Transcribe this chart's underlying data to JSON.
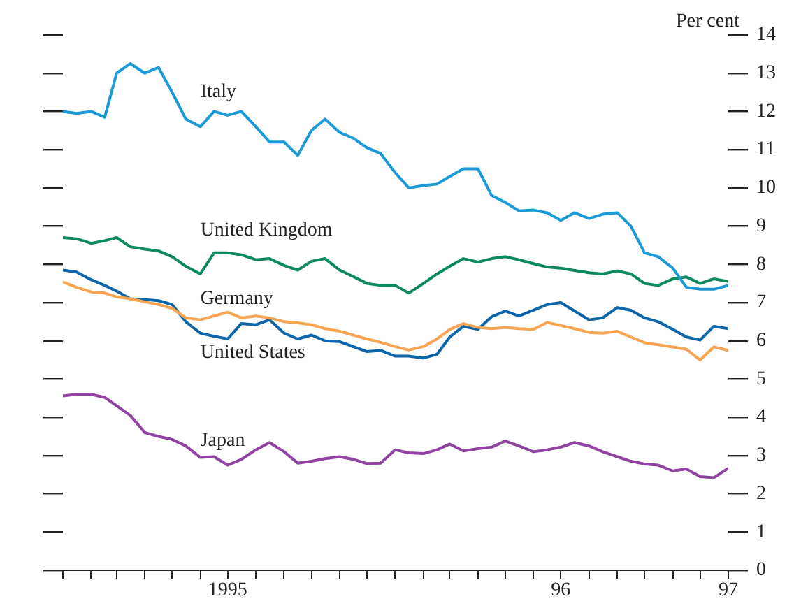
{
  "chart_data": {
    "type": "line",
    "ylabel": "Per cent",
    "x": [
      "1995-01-01",
      "1995-01-16",
      "1995-02-01",
      "1995-02-16",
      "1995-03-01",
      "1995-03-16",
      "1995-04-01",
      "1995-04-16",
      "1995-05-01",
      "1995-05-16",
      "1995-06-01",
      "1995-06-16",
      "1995-07-01",
      "1995-07-16",
      "1995-08-01",
      "1995-08-16",
      "1995-09-01",
      "1995-09-16",
      "1995-10-01",
      "1995-10-16",
      "1995-11-01",
      "1995-11-16",
      "1995-12-01",
      "1995-12-16",
      "1996-01-01",
      "1996-01-16",
      "1996-02-01",
      "1996-02-16",
      "1996-03-01",
      "1996-03-16",
      "1996-04-01",
      "1996-04-16",
      "1996-05-01",
      "1996-05-16",
      "1996-06-01",
      "1996-06-16",
      "1996-07-01",
      "1996-07-16",
      "1996-08-01",
      "1996-08-16",
      "1996-09-01",
      "1996-09-16",
      "1996-10-01",
      "1996-10-16",
      "1996-11-01",
      "1996-11-16",
      "1996-12-01",
      "1996-12-16",
      "1997-01-01"
    ],
    "series": [
      {
        "name": "Italy",
        "color": "#1a9ad6",
        "values": [
          12.0,
          11.95,
          12.0,
          11.85,
          13.0,
          13.25,
          13.0,
          13.15,
          12.5,
          11.8,
          11.6,
          12.0,
          11.9,
          12.0,
          11.6,
          11.2,
          11.2,
          10.85,
          11.5,
          11.8,
          11.45,
          11.3,
          11.05,
          10.9,
          10.4,
          10.0,
          10.06,
          10.1,
          10.3,
          10.5,
          10.5,
          9.8,
          9.62,
          9.4,
          9.42,
          9.35,
          9.15,
          9.35,
          9.2,
          9.31,
          9.35,
          9.0,
          8.3,
          8.2,
          7.9,
          7.4,
          7.35,
          7.35,
          7.45
        ]
      },
      {
        "name": "United Kingdom",
        "color": "#0b8a5c",
        "values": [
          8.7,
          8.67,
          8.55,
          8.62,
          8.7,
          8.46,
          8.4,
          8.35,
          8.2,
          7.95,
          7.75,
          8.3,
          8.3,
          8.25,
          8.12,
          8.15,
          7.97,
          7.85,
          8.08,
          8.15,
          7.85,
          7.68,
          7.5,
          7.45,
          7.45,
          7.25,
          7.5,
          7.75,
          7.95,
          8.15,
          8.06,
          8.15,
          8.2,
          8.12,
          8.02,
          7.93,
          7.9,
          7.84,
          7.78,
          7.75,
          7.83,
          7.75,
          7.5,
          7.45,
          7.62,
          7.67,
          7.5,
          7.62,
          7.55
        ]
      },
      {
        "name": "Germany",
        "color": "#f7a550",
        "values": [
          7.54,
          7.4,
          7.28,
          7.25,
          7.15,
          7.1,
          7.02,
          6.95,
          6.85,
          6.6,
          6.55,
          6.65,
          6.75,
          6.6,
          6.65,
          6.6,
          6.5,
          6.47,
          6.42,
          6.32,
          6.25,
          6.15,
          6.05,
          5.96,
          5.85,
          5.76,
          5.85,
          6.05,
          6.3,
          6.45,
          6.35,
          6.32,
          6.35,
          6.32,
          6.3,
          6.48,
          6.4,
          6.32,
          6.22,
          6.2,
          6.25,
          6.1,
          5.95,
          5.9,
          5.84,
          5.78,
          5.5,
          5.84,
          5.75
        ]
      },
      {
        "name": "United States",
        "color": "#0a66a8",
        "values": [
          7.85,
          7.8,
          7.6,
          7.45,
          7.3,
          7.1,
          7.08,
          7.05,
          6.95,
          6.5,
          6.2,
          6.12,
          6.05,
          6.45,
          6.42,
          6.55,
          6.2,
          6.05,
          6.15,
          6.0,
          5.98,
          5.85,
          5.72,
          5.75,
          5.6,
          5.6,
          5.55,
          5.65,
          6.1,
          6.38,
          6.3,
          6.63,
          6.78,
          6.65,
          6.8,
          6.95,
          7.0,
          6.78,
          6.55,
          6.6,
          6.87,
          6.8,
          6.6,
          6.5,
          6.3,
          6.1,
          6.02,
          6.38,
          6.32
        ]
      },
      {
        "name": "Japan",
        "color": "#8e44a0",
        "values": [
          4.56,
          4.6,
          4.6,
          4.52,
          4.3,
          4.05,
          3.6,
          3.5,
          3.42,
          3.25,
          2.95,
          2.97,
          2.75,
          2.9,
          3.15,
          3.34,
          3.1,
          2.8,
          2.85,
          2.92,
          2.97,
          2.9,
          2.79,
          2.8,
          3.15,
          3.07,
          3.05,
          3.15,
          3.3,
          3.12,
          3.18,
          3.22,
          3.38,
          3.25,
          3.1,
          3.15,
          3.22,
          3.34,
          3.25,
          3.1,
          2.97,
          2.85,
          2.78,
          2.75,
          2.6,
          2.65,
          2.45,
          2.42,
          2.67
        ]
      }
    ],
    "xlim": [
      "1995-01-01",
      "1997-01-01"
    ],
    "xticks": [
      {
        "value": "1995-01-01",
        "label": null
      },
      {
        "value": "1995-02-01",
        "label": null
      },
      {
        "value": "1995-03-01",
        "label": null
      },
      {
        "value": "1995-04-01",
        "label": null
      },
      {
        "value": "1995-05-01",
        "label": null
      },
      {
        "value": "1995-06-01",
        "label": null
      },
      {
        "value": "1995-07-01",
        "label": "1995"
      },
      {
        "value": "1995-08-01",
        "label": null
      },
      {
        "value": "1995-09-01",
        "label": null
      },
      {
        "value": "1995-10-01",
        "label": null
      },
      {
        "value": "1995-11-01",
        "label": null
      },
      {
        "value": "1995-12-01",
        "label": null
      },
      {
        "value": "1996-01-01",
        "label": null
      },
      {
        "value": "1996-02-01",
        "label": null
      },
      {
        "value": "1996-03-01",
        "label": null
      },
      {
        "value": "1996-04-01",
        "label": null
      },
      {
        "value": "1996-05-01",
        "label": null
      },
      {
        "value": "1996-06-01",
        "label": null
      },
      {
        "value": "1996-07-01",
        "label": "96"
      },
      {
        "value": "1996-08-01",
        "label": null
      },
      {
        "value": "1996-09-01",
        "label": null
      },
      {
        "value": "1996-10-01",
        "label": null
      },
      {
        "value": "1996-11-01",
        "label": null
      },
      {
        "value": "1996-12-01",
        "label": null
      },
      {
        "value": "1997-01-01",
        "label": "97"
      }
    ],
    "ylim": [
      0,
      14
    ],
    "yticks": [
      0,
      1,
      2,
      3,
      4,
      5,
      6,
      7,
      8,
      9,
      10,
      11,
      12,
      13,
      14
    ]
  }
}
